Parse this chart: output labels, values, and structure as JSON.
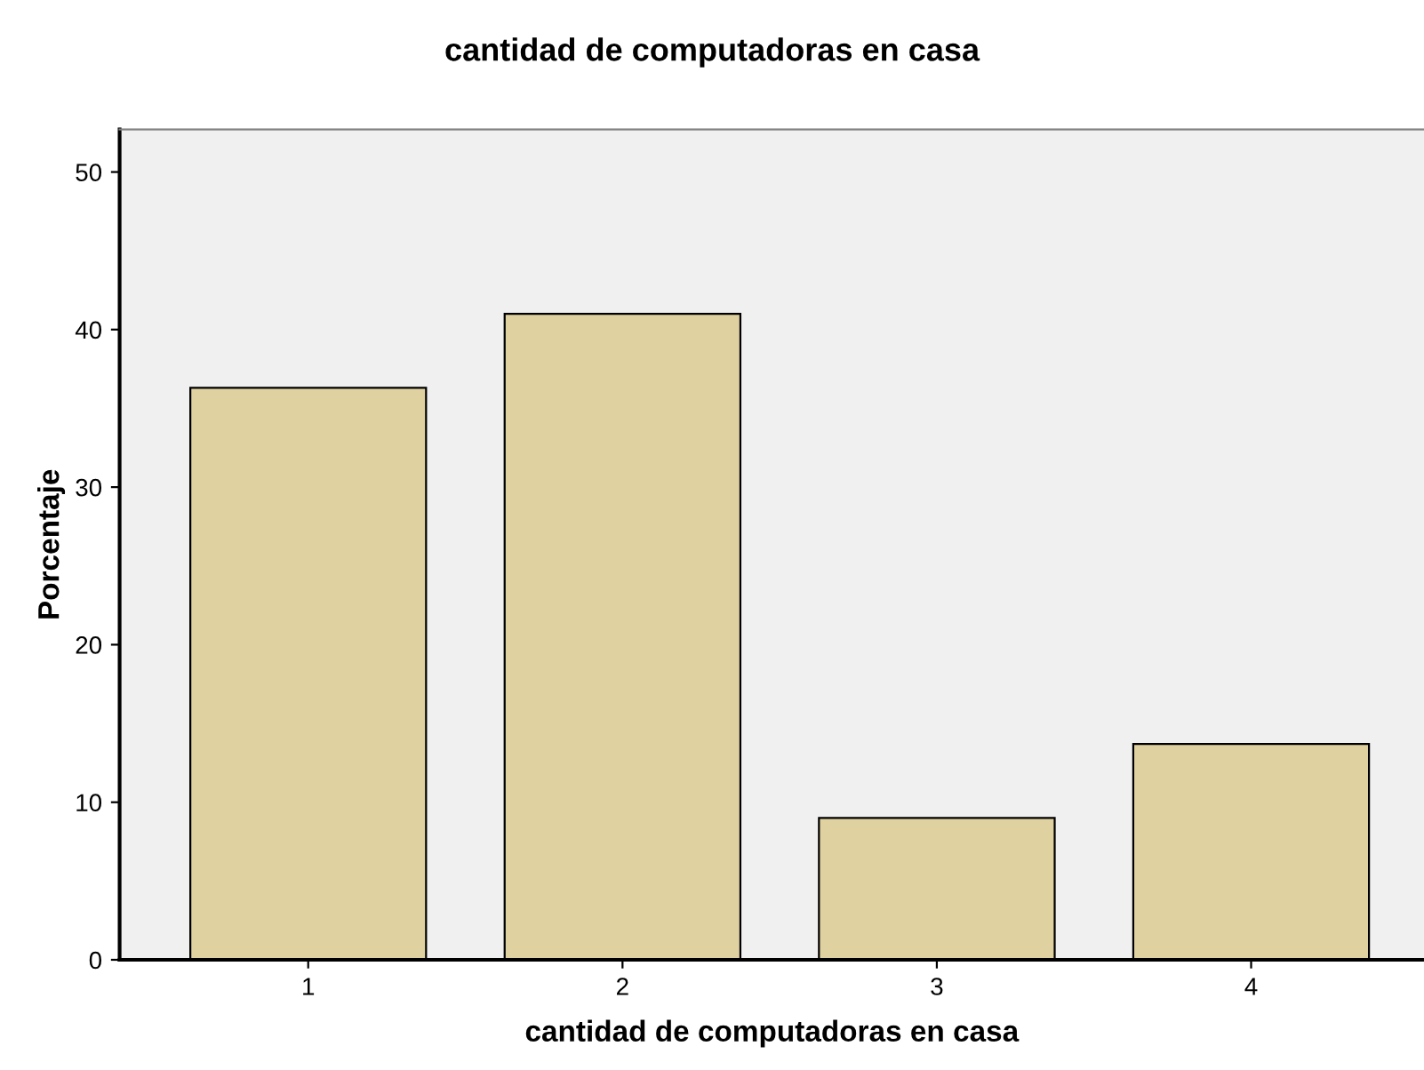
{
  "chart_data": {
    "type": "bar",
    "title": "cantidad de computadoras en casa",
    "xlabel": "cantidad de computadoras en casa",
    "ylabel": "Porcentaje",
    "categories": [
      "1",
      "2",
      "3",
      "4"
    ],
    "values": [
      36.3,
      41.0,
      9.0,
      13.7
    ],
    "color": "#e0d1a0",
    "ylim": [
      0,
      52.7
    ],
    "yticks": [
      0,
      10,
      20,
      30,
      40,
      50
    ],
    "grid": false,
    "legend": false
  }
}
